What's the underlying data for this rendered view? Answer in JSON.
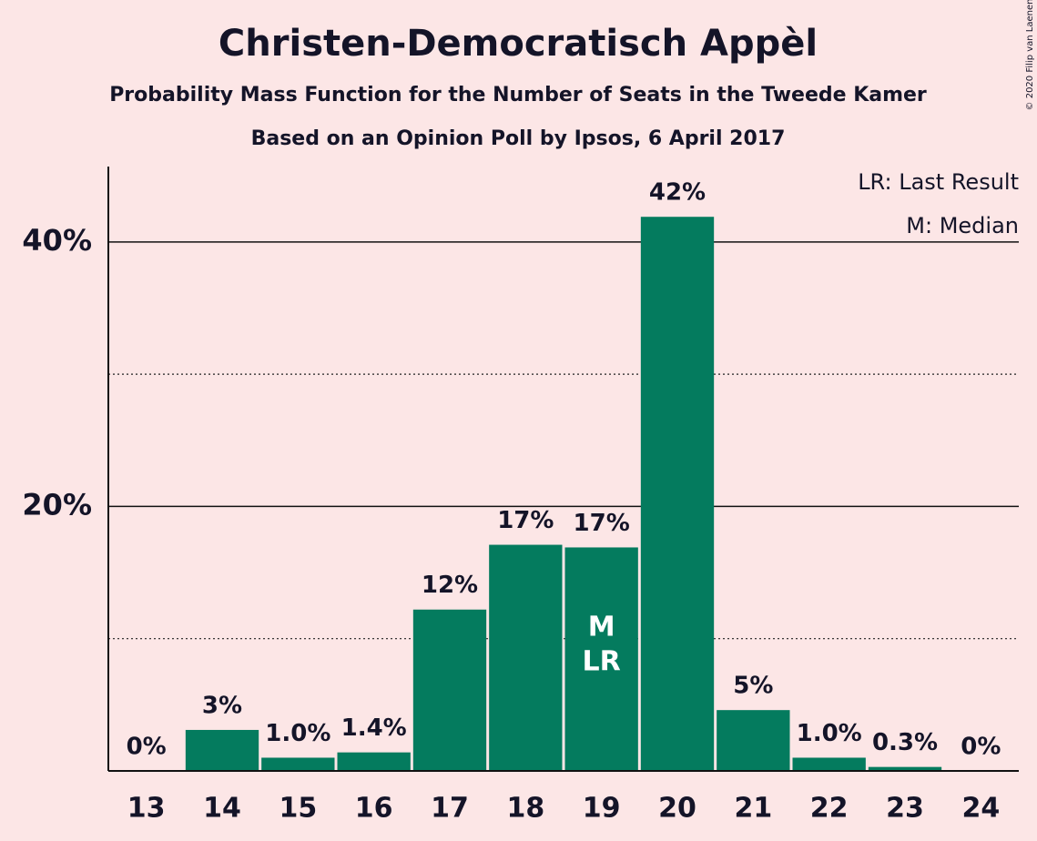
{
  "chart_data": {
    "type": "bar",
    "title": "Christen-Democratisch Appèl",
    "subtitle": "Probability Mass Function for the Number of Seats in the Tweede Kamer",
    "subtitle2": "Based on an Opinion Poll by Ipsos, 6 April 2017",
    "copyright": "© 2020 Filip van Laenen",
    "categories": [
      "13",
      "14",
      "15",
      "16",
      "17",
      "18",
      "19",
      "20",
      "21",
      "22",
      "23",
      "24"
    ],
    "values": [
      0,
      3.1,
      1.0,
      1.4,
      12.2,
      17.1,
      16.9,
      41.9,
      4.6,
      1.0,
      0.3,
      0
    ],
    "value_labels": [
      "0%",
      "3%",
      "1.0%",
      "1.4%",
      "12%",
      "17%",
      "17%",
      "42%",
      "5%",
      "1.0%",
      "0.3%",
      "0%"
    ],
    "color": "#047b5e",
    "ylim": [
      0,
      45.7
    ],
    "yticks": [
      {
        "value": 20,
        "label": "20%"
      },
      {
        "value": 40,
        "label": "40%"
      }
    ],
    "minor_yticks": [
      10,
      30
    ],
    "grid": true,
    "annotations": [
      {
        "text": "M",
        "category": "19"
      },
      {
        "text": "LR",
        "category": "19"
      }
    ],
    "legend_notes": [
      "LR: Last Result",
      "M: Median"
    ]
  }
}
